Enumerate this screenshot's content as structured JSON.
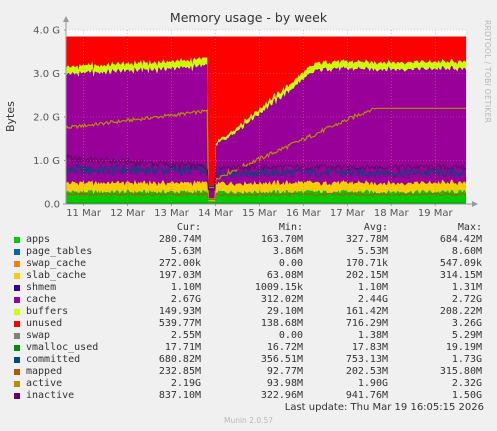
{
  "title": "Memory usage - by week",
  "side_tag": "RRDTOOL / TOBI OETIKER",
  "footer": {
    "last_update": "Last update: Thu Mar 19 16:05:15 2026",
    "munin": "Munin 2.0.57"
  },
  "legend_headers": {
    "cur": "Cur:",
    "min": "Min:",
    "avg": "Avg:",
    "max": "Max:"
  },
  "chart_data": {
    "type": "area",
    "title": "Memory usage - by week",
    "xlabel": "",
    "ylabel": "Bytes",
    "y_ticks": [
      "0.0",
      "1.0 G",
      "2.0 G",
      "3.0 G",
      "4.0 G"
    ],
    "ylim_gb": [
      0,
      4
    ],
    "x_ticks": [
      "11 Mar",
      "12 Mar",
      "13 Mar",
      "14 Mar",
      "15 Mar",
      "16 Mar",
      "17 Mar",
      "18 Mar",
      "19 Mar"
    ],
    "x_range_days": [
      10.6,
      19.7
    ],
    "grid": true,
    "stacking": "apps, page_tables, swap_cache, slab_cache, shmem, cache, buffers, unused, swap stacked; vmalloc_used, committed, mapped, active, inactive drawn as lines",
    "reboot_day": 13.92,
    "series": [
      {
        "name": "apps",
        "color": "#00cc00",
        "cur": "280.74M",
        "min": "163.70M",
        "avg": "327.78M",
        "max": "684.42M"
      },
      {
        "name": "page_tables",
        "color": "#0066b3",
        "cur": "5.63M",
        "min": "3.86M",
        "avg": "5.53M",
        "max": "8.60M"
      },
      {
        "name": "swap_cache",
        "color": "#ff8000",
        "cur": "272.00k",
        "min": "0.00",
        "avg": "170.71k",
        "max": "547.09k"
      },
      {
        "name": "slab_cache",
        "color": "#ffcc00",
        "cur": "197.03M",
        "min": "63.08M",
        "avg": "202.15M",
        "max": "314.15M"
      },
      {
        "name": "shmem",
        "color": "#330099",
        "cur": "1.10M",
        "min": "1009.15k",
        "avg": "1.10M",
        "max": "1.31M"
      },
      {
        "name": "cache",
        "color": "#990099",
        "cur": "2.67G",
        "min": "312.02M",
        "avg": "2.44G",
        "max": "2.72G"
      },
      {
        "name": "buffers",
        "color": "#ccff00",
        "cur": "149.93M",
        "min": "29.10M",
        "avg": "161.42M",
        "max": "208.22M"
      },
      {
        "name": "unused",
        "color": "#ff0000",
        "cur": "539.77M",
        "min": "138.68M",
        "avg": "716.29M",
        "max": "3.26G"
      },
      {
        "name": "swap",
        "color": "#808080",
        "cur": "2.55M",
        "min": "0.00",
        "avg": "1.38M",
        "max": "5.29M"
      },
      {
        "name": "vmalloc_used",
        "color": "#008f00",
        "cur": "17.71M",
        "min": "16.72M",
        "avg": "17.83M",
        "max": "19.19M"
      },
      {
        "name": "committed",
        "color": "#00487d",
        "cur": "680.82M",
        "min": "356.51M",
        "avg": "753.13M",
        "max": "1.73G"
      },
      {
        "name": "mapped",
        "color": "#b35a00",
        "cur": "232.85M",
        "min": "92.77M",
        "avg": "202.53M",
        "max": "315.80M"
      },
      {
        "name": "active",
        "color": "#b38f00",
        "cur": "2.19G",
        "min": "93.98M",
        "avg": "1.90G",
        "max": "2.32G"
      },
      {
        "name": "inactive",
        "color": "#6b006b",
        "cur": "837.10M",
        "min": "322.96M",
        "avg": "941.76M",
        "max": "1.50G"
      }
    ]
  }
}
